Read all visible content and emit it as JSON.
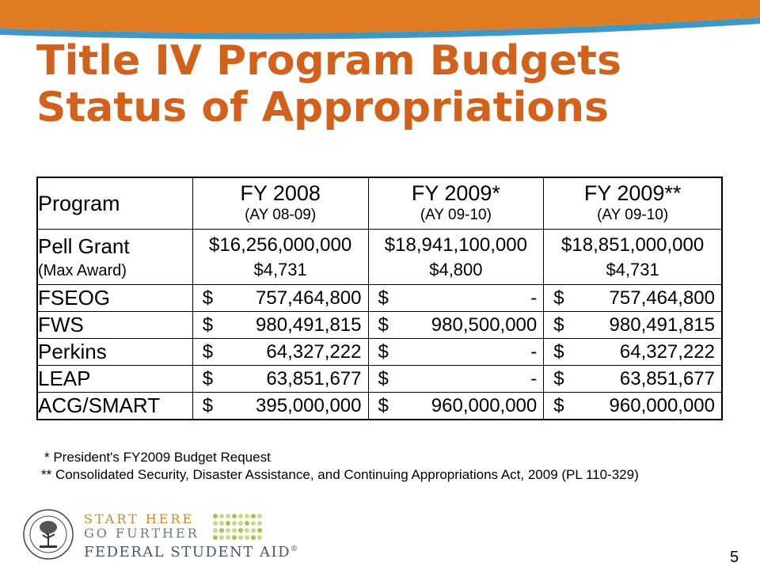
{
  "slide": {
    "title_line1": "Title IV Program Budgets",
    "title_line2": "Status of Appropriations",
    "page_number": "5"
  },
  "table": {
    "header": {
      "program": "Program",
      "columns": [
        {
          "year": "FY 2008",
          "ay": "(AY 08-09)"
        },
        {
          "year": "FY 2009*",
          "ay": "(AY 09-10)"
        },
        {
          "year": "FY 2009**",
          "ay": "(AY 09-10)"
        }
      ]
    },
    "pell": {
      "name": "Pell Grant",
      "sub": "(Max Award)",
      "values": [
        "$16,256,000,000",
        "$18,941,100,000",
        "$18,851,000,000"
      ],
      "max_awards": [
        "$4,731",
        "$4,800",
        "$4,731"
      ]
    },
    "rows": [
      {
        "program": "FSEOG",
        "cells": [
          {
            "sym": "$",
            "amt": "757,464,800"
          },
          {
            "sym": "$",
            "amt": "-"
          },
          {
            "sym": "$",
            "amt": "757,464,800"
          }
        ]
      },
      {
        "program": "FWS",
        "cells": [
          {
            "sym": "$",
            "amt": "980,491,815"
          },
          {
            "sym": "$",
            "amt": "980,500,000"
          },
          {
            "sym": "$",
            "amt": "980,491,815"
          }
        ]
      },
      {
        "program": "Perkins",
        "cells": [
          {
            "sym": "$",
            "amt": "64,327,222"
          },
          {
            "sym": "$",
            "amt": "-"
          },
          {
            "sym": "$",
            "amt": "64,327,222"
          }
        ]
      },
      {
        "program": "LEAP",
        "cells": [
          {
            "sym": "$",
            "amt": "63,851,677"
          },
          {
            "sym": "$",
            "amt": "-"
          },
          {
            "sym": "$",
            "amt": "63,851,677"
          }
        ]
      },
      {
        "program": "ACG/SMART",
        "cells": [
          {
            "sym": "$",
            "amt": "395,000,000"
          },
          {
            "sym": "$",
            "amt": "960,000,000"
          },
          {
            "sym": "$",
            "amt": "960,000,000"
          }
        ]
      }
    ]
  },
  "footnotes": {
    "note1": "*  President's FY2009 Budget Request",
    "note2": "** Consolidated Security, Disaster Assistance, and Continuing Appropriations Act, 2009 (PL 110-329)"
  },
  "logo": {
    "line1": "START HERE",
    "line2": "GO FURTHER",
    "line3": "FEDERAL STUDENT AID",
    "trademark": "®"
  },
  "colors": {
    "title": "#d2611c",
    "band_orange": "#e07b24",
    "band_blue": "#3f97c5"
  }
}
